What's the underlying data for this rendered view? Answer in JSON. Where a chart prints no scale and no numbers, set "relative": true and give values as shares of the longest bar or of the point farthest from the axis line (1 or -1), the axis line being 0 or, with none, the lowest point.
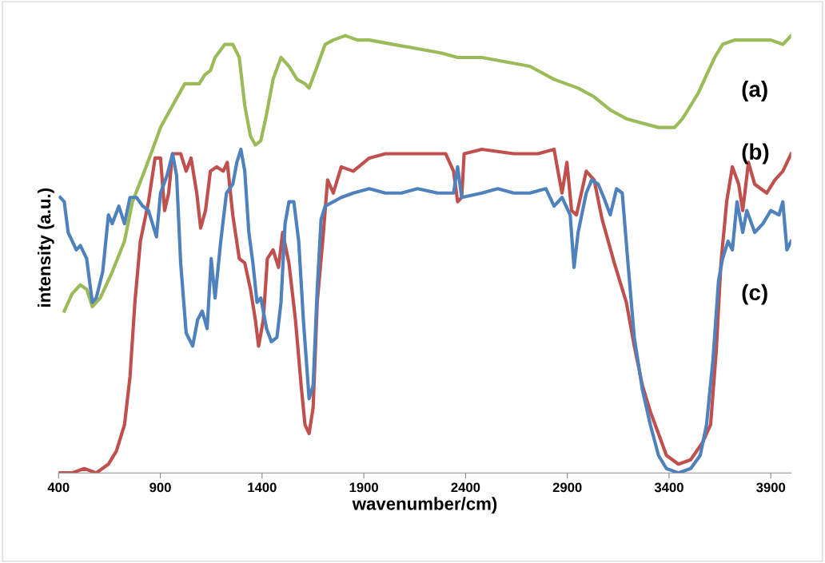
{
  "chart_data": {
    "type": "line",
    "relative": true,
    "xlabel": "wavenumber/cm)",
    "ylabel": "intensity (a.u.)",
    "xlim": [
      400,
      4000
    ],
    "xticks": [
      400,
      900,
      1400,
      1900,
      2400,
      2900,
      3400,
      3900
    ],
    "tick_labels": "x",
    "grid": false,
    "legend": false,
    "series": [
      {
        "name": "(a)",
        "color": "#9bbb59",
        "x": [
          428,
          467,
          507,
          538,
          566,
          605,
          664,
          724,
          763,
          822,
          862,
          901,
          960,
          1020,
          1059,
          1091,
          1118,
          1146,
          1169,
          1217,
          1256,
          1288,
          1315,
          1343,
          1367,
          1394,
          1422,
          1454,
          1493,
          1532,
          1572,
          1611,
          1631,
          1671,
          1710,
          1750,
          1809,
          1868,
          1927,
          2045,
          2164,
          2282,
          2361,
          2401,
          2480,
          2598,
          2716,
          2835,
          2953,
          3032,
          3111,
          3190,
          3269,
          3348,
          3387,
          3427,
          3466,
          3506,
          3545,
          3584,
          3624,
          3663,
          3722,
          3782,
          3841,
          3900,
          3959,
          4000
        ],
        "values": [
          0.37,
          0.41,
          0.43,
          0.42,
          0.38,
          0.4,
          0.46,
          0.53,
          0.62,
          0.69,
          0.74,
          0.79,
          0.84,
          0.89,
          0.89,
          0.89,
          0.91,
          0.92,
          0.95,
          0.98,
          0.98,
          0.95,
          0.84,
          0.77,
          0.75,
          0.76,
          0.82,
          0.9,
          0.95,
          0.93,
          0.9,
          0.89,
          0.88,
          0.93,
          0.98,
          0.99,
          1.0,
          0.99,
          0.99,
          0.98,
          0.97,
          0.96,
          0.95,
          0.95,
          0.95,
          0.94,
          0.93,
          0.9,
          0.88,
          0.86,
          0.83,
          0.81,
          0.8,
          0.79,
          0.79,
          0.79,
          0.81,
          0.84,
          0.87,
          0.91,
          0.95,
          0.98,
          0.99,
          0.99,
          0.99,
          0.99,
          0.98,
          1.0
        ]
      },
      {
        "name": "(b)",
        "color": "#c0504d",
        "x": [
          400,
          467,
          526,
          585,
          645,
          684,
          724,
          751,
          775,
          802,
          842,
          874,
          901,
          921,
          941,
          960,
          1000,
          1027,
          1051,
          1079,
          1098,
          1122,
          1146,
          1177,
          1209,
          1229,
          1256,
          1288,
          1315,
          1343,
          1367,
          1383,
          1406,
          1426,
          1454,
          1481,
          1501,
          1532,
          1564,
          1592,
          1611,
          1631,
          1651,
          1671,
          1698,
          1722,
          1750,
          1789,
          1848,
          1927,
          2006,
          2164,
          2302,
          2341,
          2361,
          2381,
          2393,
          2480,
          2637,
          2756,
          2835,
          2854,
          2874,
          2898,
          2921,
          2945,
          2993,
          3032,
          3071,
          3131,
          3190,
          3229,
          3269,
          3308,
          3348,
          3387,
          3446,
          3506,
          3565,
          3604,
          3632,
          3655,
          3683,
          3711,
          3742,
          3762,
          3790,
          3821,
          3880,
          3920,
          3959,
          4000
        ],
        "values": [
          0.0,
          0.0,
          0.01,
          0.0,
          0.02,
          0.05,
          0.11,
          0.22,
          0.39,
          0.53,
          0.62,
          0.72,
          0.72,
          0.6,
          0.64,
          0.73,
          0.73,
          0.69,
          0.72,
          0.64,
          0.56,
          0.6,
          0.69,
          0.7,
          0.69,
          0.71,
          0.59,
          0.49,
          0.48,
          0.42,
          0.35,
          0.29,
          0.35,
          0.49,
          0.51,
          0.47,
          0.55,
          0.48,
          0.35,
          0.2,
          0.11,
          0.09,
          0.15,
          0.39,
          0.53,
          0.67,
          0.64,
          0.7,
          0.69,
          0.72,
          0.73,
          0.73,
          0.73,
          0.69,
          0.62,
          0.63,
          0.73,
          0.74,
          0.73,
          0.73,
          0.74,
          0.69,
          0.64,
          0.71,
          0.6,
          0.59,
          0.69,
          0.67,
          0.58,
          0.48,
          0.39,
          0.29,
          0.2,
          0.14,
          0.09,
          0.04,
          0.02,
          0.03,
          0.07,
          0.11,
          0.28,
          0.48,
          0.62,
          0.7,
          0.66,
          0.6,
          0.71,
          0.66,
          0.64,
          0.67,
          0.69,
          0.73
        ]
      },
      {
        "name": "(c)",
        "color": "#4f81bd",
        "x": [
          408,
          428,
          447,
          467,
          487,
          507,
          538,
          566,
          585,
          617,
          645,
          664,
          696,
          724,
          751,
          783,
          814,
          842,
          881,
          901,
          933,
          960,
          980,
          1000,
          1027,
          1059,
          1083,
          1106,
          1130,
          1150,
          1169,
          1197,
          1225,
          1256,
          1276,
          1296,
          1315,
          1335,
          1355,
          1375,
          1394,
          1422,
          1446,
          1473,
          1493,
          1513,
          1532,
          1556,
          1580,
          1603,
          1631,
          1651,
          1671,
          1690,
          1710,
          1750,
          1789,
          1848,
          1927,
          2006,
          2085,
          2164,
          2263,
          2341,
          2361,
          2381,
          2480,
          2558,
          2637,
          2716,
          2795,
          2835,
          2874,
          2914,
          2933,
          2953,
          2993,
          3020,
          3052,
          3079,
          3111,
          3142,
          3170,
          3198,
          3229,
          3269,
          3308,
          3348,
          3387,
          3446,
          3506,
          3553,
          3584,
          3616,
          3643,
          3663,
          3690,
          3711,
          3734,
          3762,
          3782,
          3821,
          3861,
          3900,
          3940,
          3959,
          3979,
          4000
        ],
        "values": [
          0.63,
          0.62,
          0.55,
          0.53,
          0.51,
          0.52,
          0.49,
          0.39,
          0.4,
          0.46,
          0.59,
          0.57,
          0.61,
          0.57,
          0.63,
          0.63,
          0.61,
          0.6,
          0.54,
          0.64,
          0.68,
          0.73,
          0.68,
          0.48,
          0.32,
          0.29,
          0.35,
          0.37,
          0.33,
          0.49,
          0.4,
          0.53,
          0.64,
          0.66,
          0.71,
          0.74,
          0.69,
          0.55,
          0.48,
          0.39,
          0.4,
          0.33,
          0.3,
          0.31,
          0.39,
          0.57,
          0.62,
          0.62,
          0.53,
          0.35,
          0.17,
          0.2,
          0.42,
          0.58,
          0.61,
          0.62,
          0.63,
          0.64,
          0.65,
          0.64,
          0.64,
          0.65,
          0.64,
          0.64,
          0.7,
          0.63,
          0.64,
          0.65,
          0.64,
          0.64,
          0.65,
          0.61,
          0.63,
          0.59,
          0.47,
          0.55,
          0.64,
          0.67,
          0.66,
          0.63,
          0.59,
          0.65,
          0.64,
          0.48,
          0.31,
          0.19,
          0.11,
          0.04,
          0.01,
          0.0,
          0.01,
          0.04,
          0.11,
          0.26,
          0.44,
          0.49,
          0.53,
          0.51,
          0.62,
          0.55,
          0.6,
          0.55,
          0.57,
          0.6,
          0.59,
          0.62,
          0.51,
          0.53
        ]
      }
    ]
  }
}
